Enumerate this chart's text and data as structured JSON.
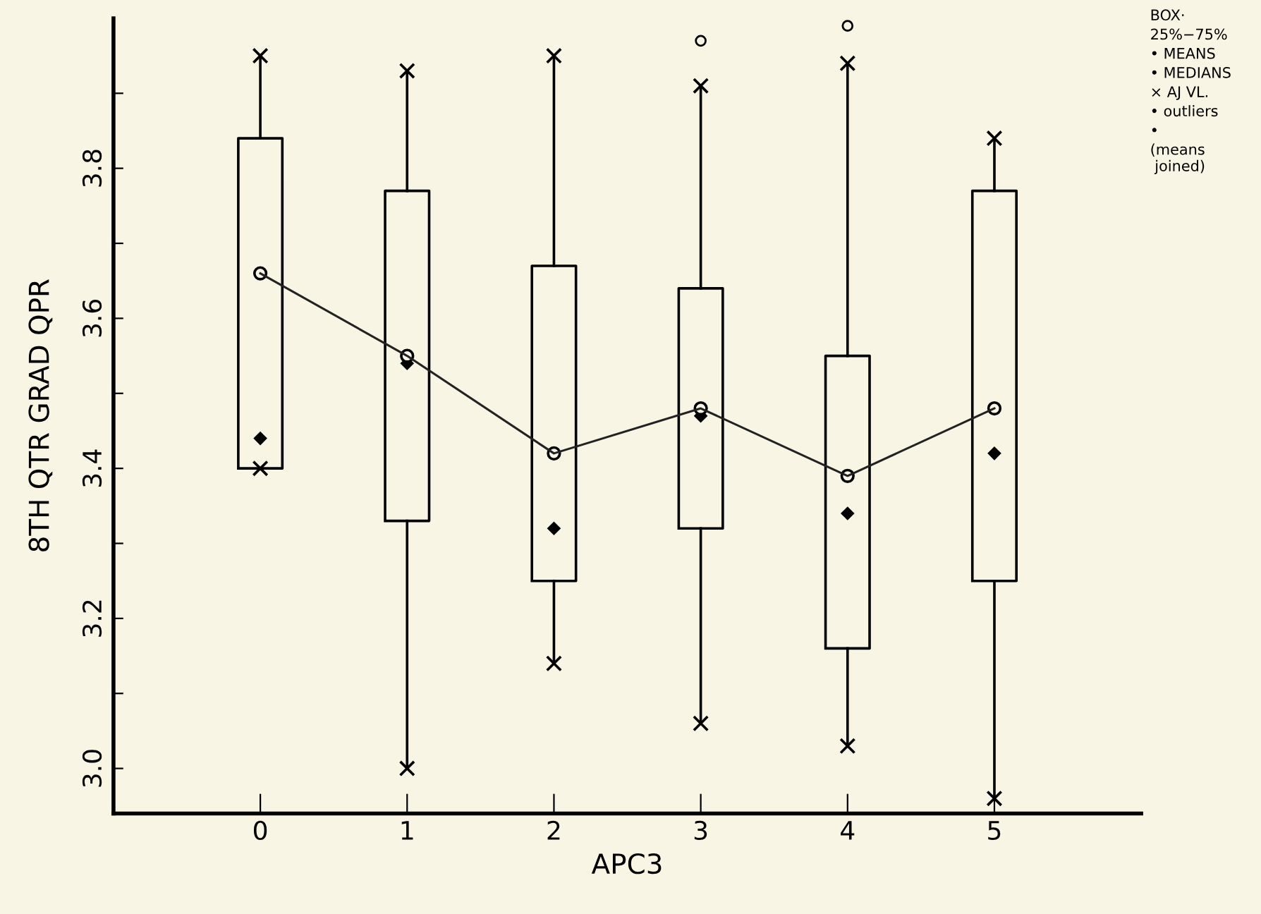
{
  "chart_data": {
    "type": "box",
    "xlabel": "APC3",
    "ylabel": "8TH QTR GRAD QPR",
    "categories": [
      "0",
      "1",
      "2",
      "3",
      "4",
      "5"
    ],
    "boxes": [
      {
        "low": 3.4,
        "q1": 3.4,
        "median": 3.44,
        "q3": 3.84,
        "high": 3.95,
        "mean": 3.66
      },
      {
        "low": 3.0,
        "q1": 3.33,
        "median": 3.54,
        "q3": 3.77,
        "high": 3.93,
        "mean": 3.55
      },
      {
        "low": 3.14,
        "q1": 3.25,
        "median": 3.32,
        "q3": 3.67,
        "high": 3.95,
        "mean": 3.42
      },
      {
        "low": 3.06,
        "q1": 3.32,
        "median": 3.47,
        "q3": 3.64,
        "high": 3.91,
        "mean": 3.48,
        "outliers": [
          3.97
        ]
      },
      {
        "low": 3.03,
        "q1": 3.16,
        "median": 3.34,
        "q3": 3.55,
        "high": 3.94,
        "mean": 3.39,
        "outliers": [
          3.99
        ]
      },
      {
        "low": 2.96,
        "q1": 3.25,
        "median": 3.42,
        "q3": 3.77,
        "high": 3.84,
        "mean": 3.48
      }
    ],
    "series": [
      {
        "type": "line",
        "color": "#222222",
        "values": [
          3.66,
          3.55,
          3.42,
          3.48,
          3.39,
          3.48
        ]
      }
    ],
    "ylim": [
      2.94,
      4.0
    ],
    "yticks": [
      {
        "value": 3.0,
        "label": "3.0"
      },
      {
        "value": 3.1,
        "label": null
      },
      {
        "value": 3.2,
        "label": "3.2"
      },
      {
        "value": 3.3,
        "label": null
      },
      {
        "value": 3.4,
        "label": "3.4"
      },
      {
        "value": 3.5,
        "label": null
      },
      {
        "value": 3.6,
        "label": "3.6"
      },
      {
        "value": 3.7,
        "label": null
      },
      {
        "value": 3.8,
        "label": "3.8"
      },
      {
        "value": 3.9,
        "label": null
      }
    ],
    "annotations": [
      "BOX·",
      "25%−75%",
      "• MEANS",
      "• MEDIANS",
      "× AJ VL.",
      "• outliers",
      "•",
      "(means\n joined)"
    ],
    "grid": false,
    "legend": false
  }
}
